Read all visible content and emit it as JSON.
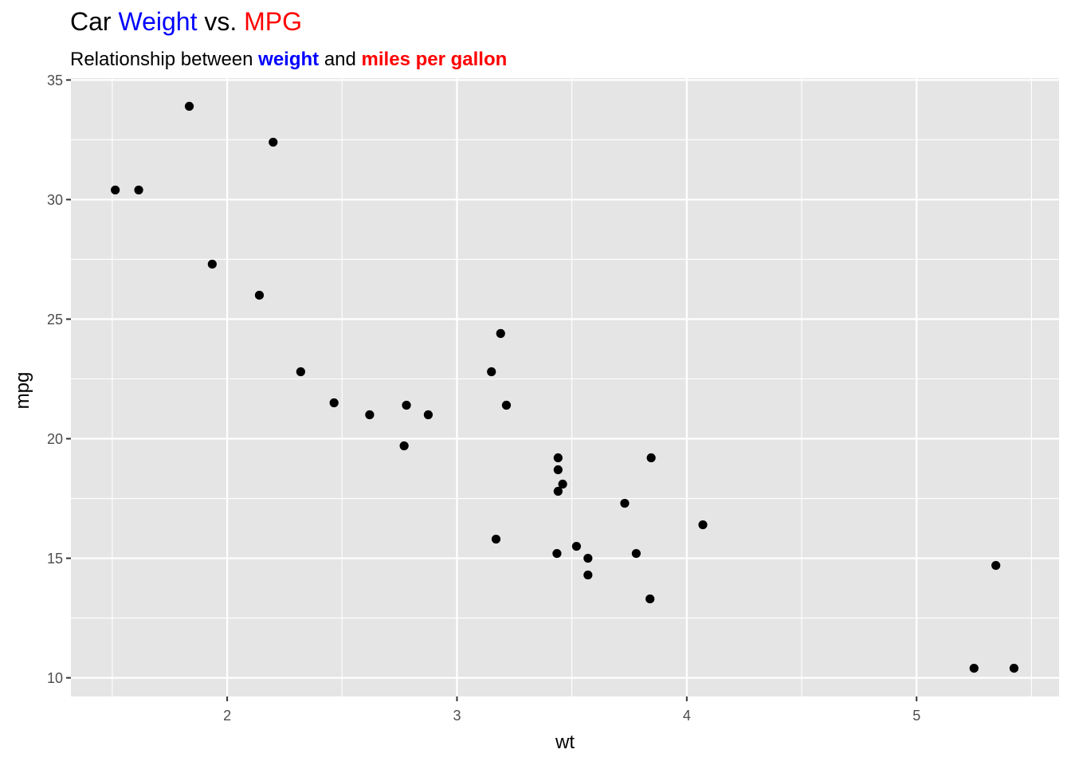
{
  "chart_data": {
    "type": "scatter",
    "title": {
      "prefix": "Car ",
      "highlight1": "Weight",
      "middle": " vs. ",
      "highlight2": "MPG"
    },
    "subtitle": {
      "prefix": "Relationship between ",
      "highlight1": "weight",
      "middle": " and ",
      "highlight2": "miles per gallon"
    },
    "colors": {
      "highlight1": "#0000ff",
      "highlight2": "#ff0000",
      "panel": "#e5e5e5",
      "grid": "#ffffff",
      "point": "#000000"
    },
    "xlabel": "wt",
    "ylabel": "mpg",
    "xlim": [
      1.32,
      5.62
    ],
    "ylim": [
      9.22,
      35.08
    ],
    "x_ticks": [
      2,
      3,
      4,
      5
    ],
    "y_ticks": [
      10,
      15,
      20,
      25,
      30,
      35
    ],
    "x_tick_labels": [
      "2",
      "3",
      "4",
      "5"
    ],
    "y_tick_labels": [
      "10",
      "15",
      "20",
      "25",
      "30",
      "35"
    ],
    "x_minor": [
      1.5,
      2.5,
      3.5,
      4.5,
      5.5
    ],
    "y_minor": [
      12.5,
      17.5,
      22.5,
      27.5,
      32.5
    ],
    "points": [
      {
        "x": 2.62,
        "y": 21.0
      },
      {
        "x": 2.875,
        "y": 21.0
      },
      {
        "x": 2.32,
        "y": 22.8
      },
      {
        "x": 3.215,
        "y": 21.4
      },
      {
        "x": 3.44,
        "y": 18.7
      },
      {
        "x": 3.46,
        "y": 18.1
      },
      {
        "x": 3.57,
        "y": 14.3
      },
      {
        "x": 3.19,
        "y": 24.4
      },
      {
        "x": 3.15,
        "y": 22.8
      },
      {
        "x": 3.44,
        "y": 19.2
      },
      {
        "x": 3.44,
        "y": 17.8
      },
      {
        "x": 4.07,
        "y": 16.4
      },
      {
        "x": 3.73,
        "y": 17.3
      },
      {
        "x": 3.78,
        "y": 15.2
      },
      {
        "x": 5.25,
        "y": 10.4
      },
      {
        "x": 5.424,
        "y": 10.4
      },
      {
        "x": 5.345,
        "y": 14.7
      },
      {
        "x": 2.2,
        "y": 32.4
      },
      {
        "x": 1.615,
        "y": 30.4
      },
      {
        "x": 1.835,
        "y": 33.9
      },
      {
        "x": 2.465,
        "y": 21.5
      },
      {
        "x": 3.52,
        "y": 15.5
      },
      {
        "x": 3.435,
        "y": 15.2
      },
      {
        "x": 3.84,
        "y": 13.3
      },
      {
        "x": 3.845,
        "y": 19.2
      },
      {
        "x": 1.935,
        "y": 27.3
      },
      {
        "x": 2.14,
        "y": 26.0
      },
      {
        "x": 1.513,
        "y": 30.4
      },
      {
        "x": 3.17,
        "y": 15.8
      },
      {
        "x": 2.77,
        "y": 19.7
      },
      {
        "x": 3.57,
        "y": 15.0
      },
      {
        "x": 2.78,
        "y": 21.4
      }
    ]
  }
}
